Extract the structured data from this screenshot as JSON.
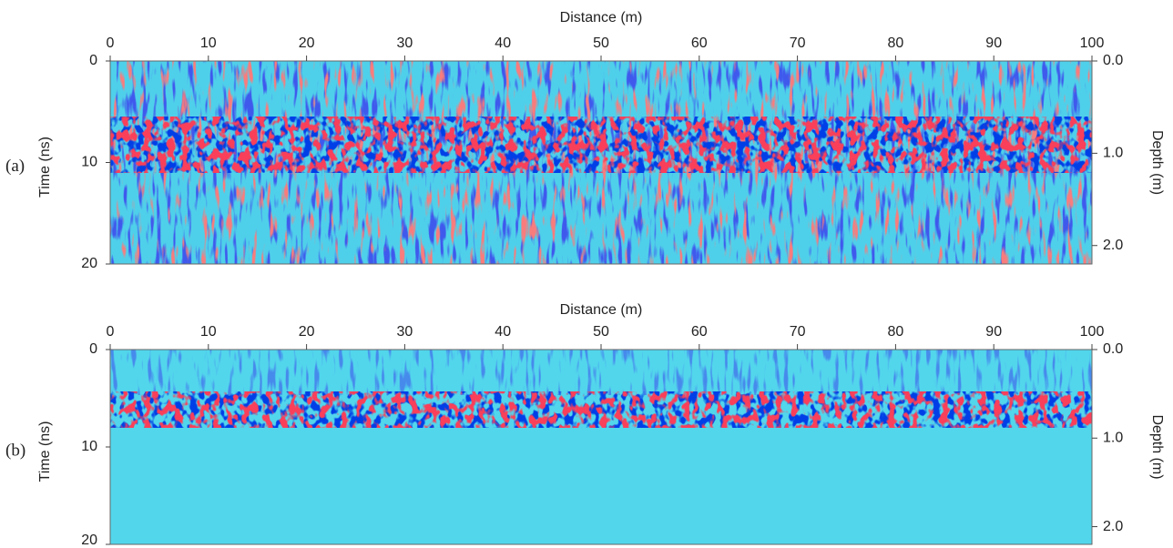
{
  "chart_data": [
    {
      "type": "radargram",
      "label": "(a)",
      "xlabel": "Distance (m)",
      "ylabel": "Time (ns)",
      "y2label": "Depth (m)",
      "xlim": [
        0,
        100
      ],
      "xticks": [
        0,
        10,
        20,
        30,
        40,
        50,
        60,
        70,
        80,
        90,
        100
      ],
      "ylim": [
        0,
        20
      ],
      "yticks": [
        0,
        10,
        20
      ],
      "y_reversed": true,
      "y2lim": [
        0,
        2.2
      ],
      "y2ticks": [
        {
          "value": 0,
          "label": "0.0"
        },
        {
          "value": 1,
          "label": "1.0"
        },
        {
          "value": 2,
          "label": "2.0"
        }
      ]
    },
    {
      "type": "radargram",
      "label": "(b)",
      "xlabel": "Distance (m)",
      "ylabel": "Time (ns)",
      "y2label": "Depth (m)",
      "xlim": [
        0,
        100
      ],
      "xticks": [
        0,
        10,
        20,
        30,
        40,
        50,
        60,
        70,
        80,
        90,
        100
      ],
      "ylim": [
        0,
        20
      ],
      "yticks": [
        0,
        10,
        20
      ],
      "y_reversed": true,
      "y2lim": [
        0,
        2.2
      ],
      "y2ticks": [
        {
          "value": 0,
          "label": "0.0"
        },
        {
          "value": 1,
          "label": "1.0"
        },
        {
          "value": 2,
          "label": "2.0"
        }
      ]
    }
  ]
}
